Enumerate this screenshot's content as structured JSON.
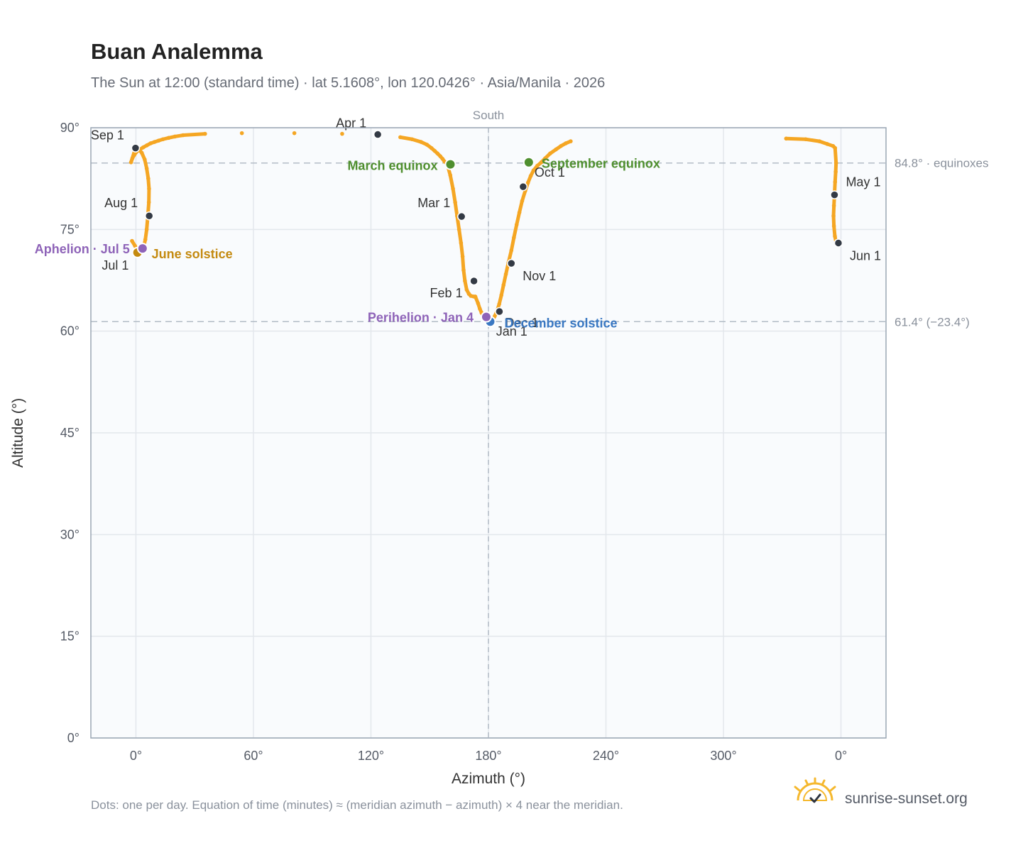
{
  "title": "Buan Analemma",
  "subtitle": "The Sun at 12:00 (standard time) · lat 5.1608°, lon 120.0426° · Asia/Manila · 2026",
  "footnote": "Dots: one per day. Equation of time (minutes) ≈ (meridian azimuth − azimuth) × 4 near the meridian.",
  "brand": {
    "text": "sunrise-sunset.org",
    "logo": "sun-logo-icon"
  },
  "colors": {
    "curve": "#f5a623",
    "month_marker": "#333a45",
    "march_equinox": "#4f8f2f",
    "september_equinox": "#4f8f2f",
    "june_solstice": "#c48a10",
    "december_solstice": "#3a78c2",
    "apsis": "#8e63b8",
    "plot_background": "#f9fbfd",
    "grid": "#e3e7ec",
    "reference_line": "#b3bcc6"
  },
  "chart_data": {
    "type": "scatter",
    "xlabel": "Azimuth (°)",
    "ylabel": "Altitude (°)",
    "x_ticks": [
      "0°",
      "60°",
      "120°",
      "180°",
      "240°",
      "300°",
      "0°"
    ],
    "y_ticks": [
      "0°",
      "15°",
      "30°",
      "45°",
      "60°",
      "75°",
      "90°"
    ],
    "xlim": [
      -23,
      383
    ],
    "ylim": [
      0,
      90
    ],
    "x_tick_values": [
      0,
      60,
      120,
      180,
      240,
      300,
      360
    ],
    "y_tick_values": [
      0,
      15,
      30,
      45,
      60,
      75,
      90
    ],
    "grid": true,
    "meridian": {
      "azimuth": 180,
      "label": "South"
    },
    "reference_lines": [
      {
        "altitude": 84.8,
        "label": "84.8° · equinoxes"
      },
      {
        "altitude": 61.4,
        "label": "61.4° (−23.4°)"
      }
    ],
    "series": [
      {
        "points": [
          [
            173.3,
            65.1
          ],
          [
            174.7,
            64.1
          ],
          [
            175.6,
            63.3
          ],
          [
            176.5,
            62.7
          ],
          [
            177.4,
            62.2
          ],
          [
            178.3,
            61.8
          ],
          [
            179.2,
            61.6
          ],
          [
            180.2,
            61.4
          ],
          [
            181.8,
            61.5
          ],
          [
            182.5,
            61.8
          ],
          [
            183.2,
            62.2
          ],
          [
            184.3,
            62.9
          ],
          [
            185.5,
            64.0
          ],
          [
            186.6,
            65.3
          ],
          [
            187.7,
            66.8
          ],
          [
            188.9,
            68.4
          ],
          [
            190.2,
            70.1
          ],
          [
            191.7,
            71.9
          ],
          [
            193.0,
            73.8
          ],
          [
            194.4,
            75.7
          ],
          [
            195.8,
            77.5
          ],
          [
            197.2,
            79.2
          ],
          [
            198.8,
            80.7
          ],
          [
            200.2,
            81.9
          ],
          [
            201.6,
            82.9
          ],
          [
            203.0,
            83.7
          ],
          [
            205.0,
            84.4
          ],
          [
            207.0,
            84.9
          ],
          [
            209.0,
            85.5
          ],
          [
            211.5,
            86.2
          ],
          [
            214.5,
            86.8
          ],
          [
            217.0,
            87.3
          ],
          [
            219.5,
            87.7
          ],
          [
            222.0,
            88.0
          ],
          [
            332.0,
            88.4
          ],
          [
            342.0,
            88.3
          ],
          [
            349.0,
            88.0
          ],
          [
            353.0,
            87.6
          ],
          [
            356.0,
            87.3
          ],
          [
            357.0,
            87.0
          ],
          [
            357.5,
            84.8
          ],
          [
            357.3,
            83.5
          ],
          [
            357.0,
            82.0
          ],
          [
            356.7,
            80.2
          ],
          [
            356.4,
            78.5
          ],
          [
            356.2,
            77.0
          ],
          [
            356.4,
            75.5
          ],
          [
            356.9,
            74.0
          ],
          [
            357.6,
            73.0
          ],
          [
            -2.0,
            73.3
          ],
          [
            -0.5,
            72.6
          ],
          [
            0.5,
            72.0
          ],
          [
            1.2,
            71.6
          ],
          [
            3.8,
            72.2
          ],
          [
            4.8,
            73.5
          ],
          [
            5.5,
            75.0
          ],
          [
            6.1,
            77.0
          ],
          [
            6.6,
            79.0
          ],
          [
            6.7,
            81.0
          ],
          [
            6.3,
            82.5
          ],
          [
            5.5,
            84.0
          ],
          [
            4.5,
            85.3
          ],
          [
            3.0,
            86.3
          ],
          [
            1.5,
            86.8
          ],
          [
            -0.2,
            87.0
          ],
          [
            -2.5,
            84.9
          ],
          [
            -1.8,
            85.5
          ],
          [
            -0.8,
            86.0
          ],
          [
            0.5,
            86.5
          ],
          [
            2.0,
            86.8
          ],
          [
            3.7,
            87.1
          ],
          [
            5.6,
            87.4
          ],
          [
            7.5,
            87.7
          ],
          [
            9.5,
            87.9
          ],
          [
            11.6,
            88.1
          ],
          [
            13.8,
            88.3
          ],
          [
            16.7,
            88.5
          ],
          [
            19.9,
            88.7
          ],
          [
            24.1,
            88.9
          ],
          [
            35.3,
            89.1
          ],
          [
            54.1,
            89.2
          ],
          [
            80.9,
            89.2
          ],
          [
            105.3,
            89.1
          ],
          [
            135.0,
            88.6
          ],
          [
            141.0,
            88.3
          ],
          [
            145.6,
            87.9
          ],
          [
            148.6,
            87.5
          ],
          [
            150.9,
            87.0
          ],
          [
            152.5,
            86.6
          ],
          [
            154.0,
            86.2
          ],
          [
            155.4,
            85.8
          ],
          [
            156.6,
            85.4
          ],
          [
            157.6,
            85.0
          ],
          [
            159.0,
            84.6
          ],
          [
            160.5,
            83.0
          ],
          [
            161.9,
            81.0
          ],
          [
            163.0,
            79.0
          ],
          [
            164.0,
            77.0
          ],
          [
            165.0,
            75.0
          ],
          [
            166.0,
            73.0
          ],
          [
            166.8,
            71.0
          ],
          [
            167.3,
            69.0
          ],
          [
            168.0,
            67.4
          ],
          [
            168.9,
            66.1
          ],
          [
            170.0,
            65.5
          ],
          [
            171.0,
            65.2
          ],
          [
            172.5,
            65.1
          ]
        ]
      }
    ],
    "month_markers": [
      {
        "label": "Jan 1",
        "az": 181.0,
        "alt": 61.45
      },
      {
        "label": "Feb 1",
        "az": 172.6,
        "alt": 67.4
      },
      {
        "label": "Mar 1",
        "az": 166.3,
        "alt": 76.9
      },
      {
        "label": "Apr 1",
        "az": 123.5,
        "alt": 89.0
      },
      {
        "label": "May 1",
        "az": 356.7,
        "alt": 80.1
      },
      {
        "label": "Jun 1",
        "az": 358.7,
        "alt": 73.0
      },
      {
        "label": "Jul 1",
        "az": 0.7,
        "alt": 71.5
      },
      {
        "label": "Aug 1",
        "az": 6.8,
        "alt": 77.0
      },
      {
        "label": "Sep 1",
        "az": -0.2,
        "alt": 87.0
      },
      {
        "label": "Oct 1",
        "az": 197.7,
        "alt": 81.3
      },
      {
        "label": "Nov 1",
        "az": 191.7,
        "alt": 70.0
      },
      {
        "label": "Dec 1",
        "az": 185.6,
        "alt": 62.9
      }
    ],
    "events": [
      {
        "label": "March equinox",
        "az": 160.6,
        "alt": 84.6,
        "color_key": "march_equinox",
        "anchor": "end"
      },
      {
        "label": "September equinox",
        "az": 200.6,
        "alt": 84.9,
        "color_key": "september_equinox",
        "anchor": "start"
      },
      {
        "label": "June solstice",
        "az": 0.8,
        "alt": 71.6,
        "color_key": "june_solstice",
        "anchor": "start"
      },
      {
        "label": "December solstice",
        "az": 180.9,
        "alt": 61.4,
        "color_key": "december_solstice",
        "anchor": "start"
      },
      {
        "label": "Aphelion · Jul 5",
        "az": 3.4,
        "alt": 72.2,
        "color_key": "apsis",
        "anchor": "end"
      },
      {
        "label": "Perihelion · Jan 4",
        "az": 178.9,
        "alt": 62.1,
        "color_key": "apsis",
        "anchor": "end"
      }
    ]
  }
}
